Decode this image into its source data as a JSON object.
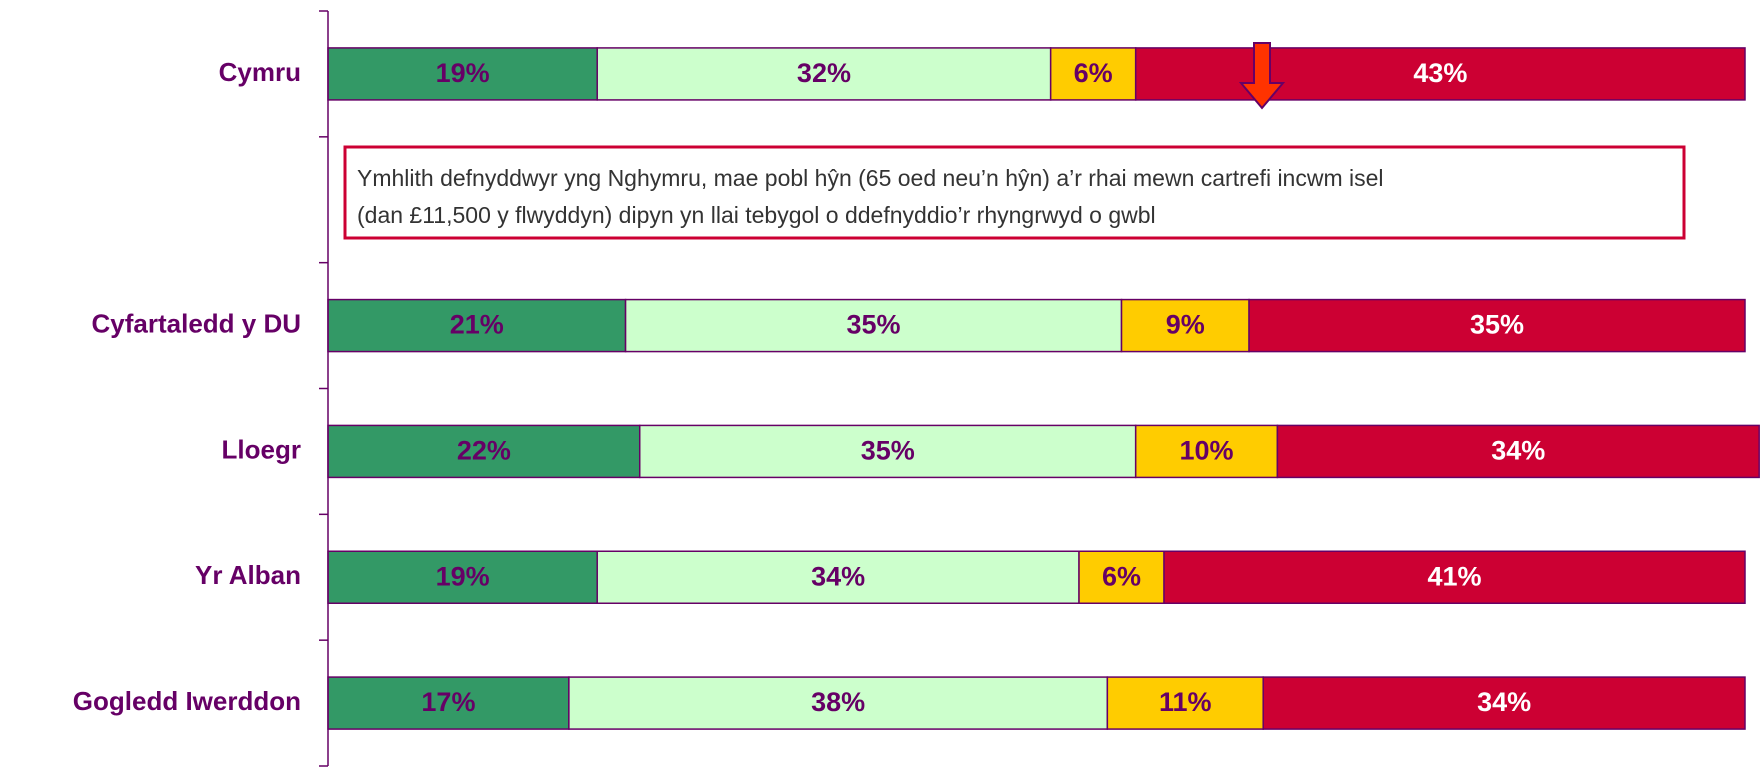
{
  "chart_data": {
    "type": "stacked_bar_horizontal",
    "categories": [
      "Cymru",
      null,
      "Cyfartaledd y DU",
      "Lloegr",
      "Yr Alban",
      "Gogledd Iwerddon"
    ],
    "series": [
      {
        "color": "#339966",
        "label_color": "#660066",
        "values": [
          19,
          null,
          21,
          22,
          19,
          17
        ],
        "value_labels": [
          "19%",
          null,
          "21%",
          "22%",
          "19%",
          "17%"
        ]
      },
      {
        "color": "#ccffcc",
        "label_color": "#660066",
        "values": [
          32,
          null,
          35,
          35,
          34,
          38
        ],
        "value_labels": [
          "32%",
          null,
          "35%",
          "35%",
          "34%",
          "38%"
        ]
      },
      {
        "color": "#ffcc00",
        "label_color": "#660066",
        "values": [
          6,
          null,
          9,
          10,
          6,
          11
        ],
        "value_labels": [
          "6%",
          null,
          "9%",
          "10%",
          "6%",
          "11%"
        ]
      },
      {
        "color": "#cc0033",
        "label_color": "#ffffff",
        "values": [
          43,
          null,
          35,
          34,
          41,
          34
        ],
        "value_labels": [
          "43%",
          null,
          "35%",
          "34%",
          "41%",
          "34%"
        ]
      }
    ],
    "xlim": [
      0,
      100
    ],
    "annotation": [
      "Ymhlith defnyddwyr yng Nghymru, mae pobl hŷn (65 oed neu’n hŷn) a’r rhai mewn cartrefi incwm isel",
      "(dan £11,500 y flwyddyn) dipyn yn llai tebygol o ddefnyddio’r rhyngrwyd o gwbl"
    ]
  }
}
